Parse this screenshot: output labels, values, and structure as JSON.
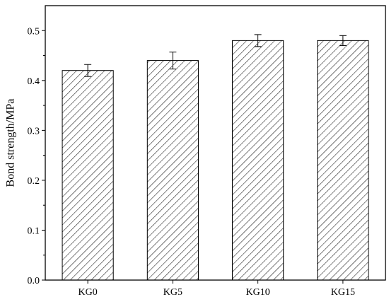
{
  "chart_data": {
    "type": "bar",
    "title": "",
    "xlabel": "",
    "ylabel": "Bond strength/MPa",
    "categories": [
      "KG0",
      "KG5",
      "KG10",
      "KG15"
    ],
    "values": [
      0.42,
      0.44,
      0.48,
      0.48
    ],
    "errors": [
      0.012,
      0.017,
      0.012,
      0.01
    ],
    "ylim": [
      0,
      0.55
    ],
    "yticks": [
      0.0,
      0.1,
      0.2,
      0.3,
      0.4,
      0.5
    ],
    "ytick_labels": [
      "0.0",
      "0.1",
      "0.2",
      "0.3",
      "0.4",
      "0.5"
    ],
    "bar_fill": "diagonal-hatch",
    "colors": {
      "stroke": "#000000",
      "background": "#ffffff"
    },
    "grid": false,
    "legend": "none"
  }
}
